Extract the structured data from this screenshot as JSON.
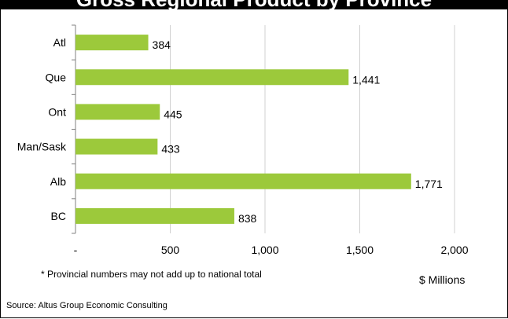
{
  "title": "Gross Regional Product by Province",
  "chart_data": {
    "type": "bar",
    "orientation": "horizontal",
    "categories": [
      "Atl",
      "Que",
      "Ont",
      "Man/Sask",
      "Alb",
      "BC"
    ],
    "values": [
      384,
      1441,
      445,
      433,
      1771,
      838
    ],
    "value_labels": [
      "384",
      "1,441",
      "445",
      "433",
      "1,771",
      "838"
    ],
    "xlim": [
      0,
      2000
    ],
    "x_ticks": [
      0,
      500,
      1000,
      1500,
      2000
    ],
    "x_tick_labels": [
      "-",
      "500",
      "1,000",
      "1,500",
      "2,000"
    ],
    "xlabel": "$ Millions",
    "grid": "vertical",
    "bar_color": "#9cc93b",
    "note": "* Provincial numbers may not add up to national total"
  },
  "source": "Source: Altus Group Economic Consulting"
}
